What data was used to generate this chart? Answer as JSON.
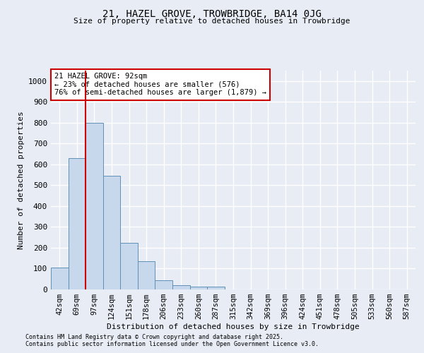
{
  "title1": "21, HAZEL GROVE, TROWBRIDGE, BA14 0JG",
  "title2": "Size of property relative to detached houses in Trowbridge",
  "xlabel": "Distribution of detached houses by size in Trowbridge",
  "ylabel": "Number of detached properties",
  "categories": [
    "42sqm",
    "69sqm",
    "97sqm",
    "124sqm",
    "151sqm",
    "178sqm",
    "206sqm",
    "233sqm",
    "260sqm",
    "287sqm",
    "315sqm",
    "342sqm",
    "369sqm",
    "396sqm",
    "424sqm",
    "451sqm",
    "478sqm",
    "505sqm",
    "533sqm",
    "560sqm",
    "587sqm"
  ],
  "values": [
    105,
    630,
    800,
    545,
    225,
    135,
    45,
    20,
    15,
    15,
    0,
    0,
    0,
    0,
    0,
    0,
    0,
    0,
    0,
    0,
    0
  ],
  "bar_color": "#c8d8ec",
  "bar_edge_color": "#6090b8",
  "highlight_line_color": "#cc0000",
  "annotation_text": "21 HAZEL GROVE: 92sqm\n← 23% of detached houses are smaller (576)\n76% of semi-detached houses are larger (1,879) →",
  "annotation_box_color": "#ffffff",
  "annotation_box_edge_color": "#cc0000",
  "ylim": [
    0,
    1050
  ],
  "yticks": [
    0,
    100,
    200,
    300,
    400,
    500,
    600,
    700,
    800,
    900,
    1000
  ],
  "background_color": "#e8edf5",
  "plot_background_color": "#e8edf5",
  "grid_color": "#ffffff",
  "footer1": "Contains HM Land Registry data © Crown copyright and database right 2025.",
  "footer2": "Contains public sector information licensed under the Open Government Licence v3.0."
}
